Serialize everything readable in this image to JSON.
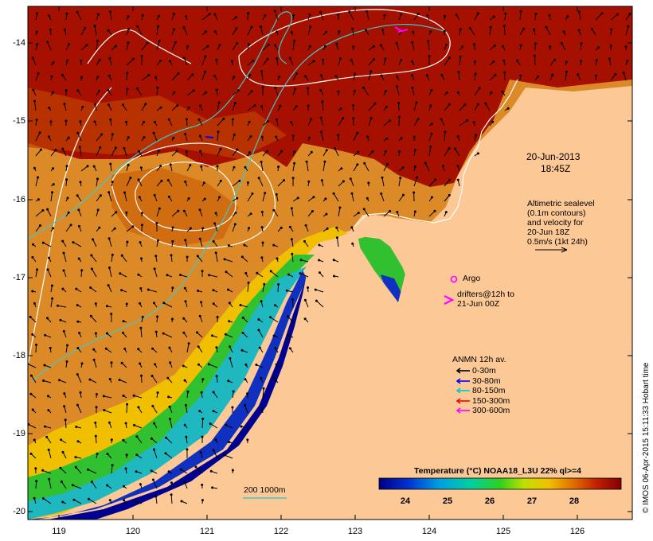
{
  "map": {
    "x_ticks": [
      "119",
      "120",
      "121",
      "122",
      "123",
      "124",
      "125",
      "126"
    ],
    "y_ticks": [
      "-14",
      "-15",
      "-16",
      "-17",
      "-18",
      "-19",
      "-20"
    ],
    "timestamp_line1": "20-Jun-2013",
    "timestamp_line2": "18:45Z",
    "altimetry_note": [
      "Altimetric sealevel",
      "(0.1m contours)",
      "and velocity for",
      "20-Jun 18Z",
      "0.5m/s (1kt 24h)"
    ],
    "argo_label": "Argo",
    "drifters_label": [
      "drifters@12h to",
      "21-Jun 00Z"
    ],
    "anmn_title": "ANMN 12h av.",
    "anmn_items": [
      {
        "label": "0-30m",
        "color": "#000000"
      },
      {
        "label": "30-80m",
        "color": "#0000ff"
      },
      {
        "label": "80-150m",
        "color": "#00c8c8"
      },
      {
        "label": "150-300m",
        "color": "#ff0000"
      },
      {
        "label": "300-600m",
        "color": "#ff00ff"
      }
    ],
    "isobath_label": "200  1000m",
    "colorbar_title": "Temperature (°C) NOAA18_L3U 22% ql>=4",
    "colorbar_ticks": [
      "24",
      "25",
      "26",
      "27",
      "28"
    ],
    "credit": "© IMOS 06-Apr-2015 15:11:33 Hobart time"
  },
  "colors": {
    "land": "#fcc896",
    "warm_dark": "#a51000",
    "warm_mid": "#c85a00",
    "warm_orange": "#e08a20",
    "yellow": "#f0d000",
    "green": "#20b830",
    "cyan": "#20b8c0",
    "blue": "#1030c0",
    "navy": "#000090",
    "magenta": "#ff00ff",
    "isobath": "#40c8c8"
  }
}
